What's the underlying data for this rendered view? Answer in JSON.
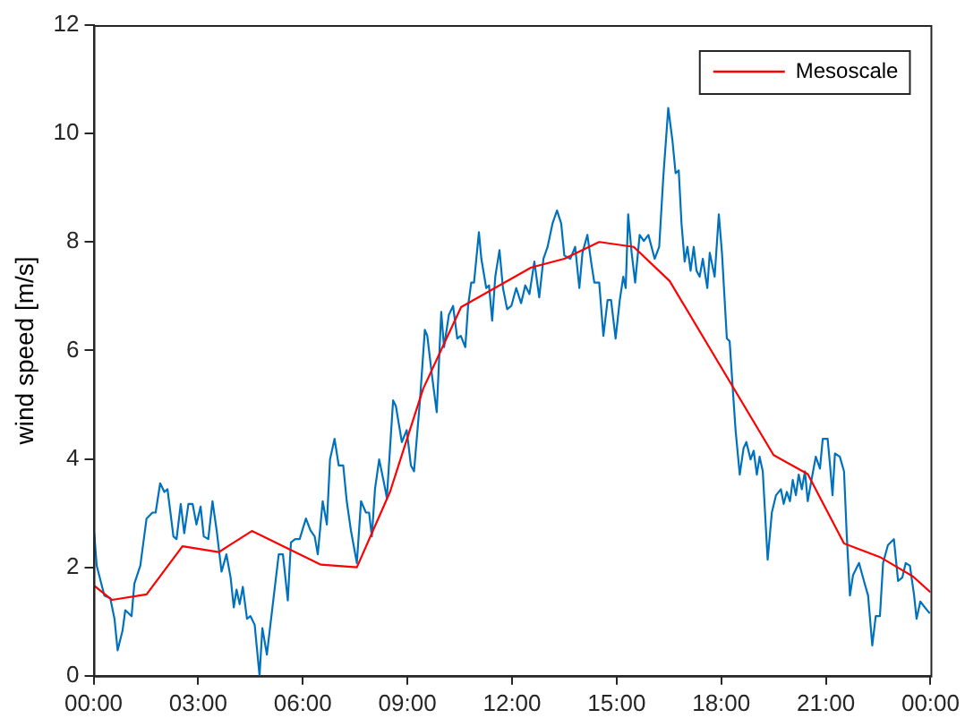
{
  "chart_data": {
    "type": "line",
    "ylabel": "wind speed [m/s]",
    "xlim": [
      0,
      24
    ],
    "ylim": [
      0,
      12
    ],
    "xticks": [
      {
        "value": 0,
        "label": "00:00"
      },
      {
        "value": 3,
        "label": "03:00"
      },
      {
        "value": 6,
        "label": "06:00"
      },
      {
        "value": 9,
        "label": "09:00"
      },
      {
        "value": 12,
        "label": "12:00"
      },
      {
        "value": 15,
        "label": "15:00"
      },
      {
        "value": 18,
        "label": "18:00"
      },
      {
        "value": 21,
        "label": "21:00"
      },
      {
        "value": 24,
        "label": "00:00"
      }
    ],
    "yticks": [
      0,
      2,
      4,
      6,
      8,
      10,
      12
    ],
    "grid": false,
    "legend": "top right",
    "marker": "none",
    "line_style": "solid",
    "series": [
      {
        "name": "Mesoscale",
        "color": "#ff0000",
        "x": [
          0,
          0.53,
          1.52,
          2.55,
          3.59,
          4.54,
          6.52,
          7.55,
          8.5,
          9.45,
          10.54,
          12.55,
          13.5,
          14.5,
          15.49,
          16.52,
          19.5,
          20.48,
          21.52,
          22.55,
          23.5,
          24
        ],
        "values": [
          1.67,
          1.4,
          1.5,
          2.39,
          2.28,
          2.67,
          2.05,
          2.0,
          3.39,
          5.29,
          6.8,
          7.53,
          7.69,
          8.0,
          7.91,
          7.28,
          4.07,
          3.72,
          2.44,
          2.19,
          1.83,
          1.54
        ]
      },
      {
        "color": "#0072bd",
        "x": [
          0.02,
          0.09,
          0.31,
          0.48,
          0.6,
          0.69,
          0.83,
          0.91,
          1.09,
          1.17,
          1.34,
          1.52,
          1.69,
          1.78,
          1.91,
          2.03,
          2.12,
          2.29,
          2.38,
          2.5,
          2.6,
          2.72,
          2.84,
          2.95,
          3.07,
          3.16,
          3.29,
          3.41,
          3.53,
          3.67,
          3.81,
          3.93,
          4.02,
          4.1,
          4.19,
          4.28,
          4.4,
          4.5,
          4.62,
          4.76,
          4.84,
          4.97,
          5.05,
          5.19,
          5.31,
          5.43,
          5.57,
          5.66,
          5.78,
          5.91,
          6.09,
          6.22,
          6.34,
          6.43,
          6.57,
          6.69,
          6.78,
          6.91,
          7.03,
          7.16,
          7.26,
          7.38,
          7.55,
          7.67,
          7.81,
          7.9,
          7.98,
          8.07,
          8.19,
          8.33,
          8.41,
          8.59,
          8.67,
          8.84,
          8.98,
          9.1,
          9.19,
          9.36,
          9.5,
          9.57,
          9.71,
          9.84,
          9.97,
          10.05,
          10.19,
          10.31,
          10.43,
          10.53,
          10.66,
          10.74,
          10.83,
          10.91,
          11.05,
          11.12,
          11.26,
          11.34,
          11.43,
          11.52,
          11.64,
          11.74,
          11.86,
          11.98,
          12.12,
          12.26,
          12.38,
          12.5,
          12.64,
          12.78,
          12.9,
          13.02,
          13.16,
          13.29,
          13.41,
          13.5,
          13.67,
          13.81,
          13.93,
          14.02,
          14.16,
          14.28,
          14.36,
          14.5,
          14.62,
          14.74,
          14.84,
          14.97,
          15.09,
          15.19,
          15.26,
          15.33,
          15.43,
          15.53,
          15.66,
          15.78,
          15.91,
          16.09,
          16.22,
          16.34,
          16.48,
          16.6,
          16.69,
          16.78,
          16.86,
          16.95,
          17.03,
          17.12,
          17.21,
          17.29,
          17.38,
          17.47,
          17.6,
          17.67,
          17.81,
          17.93,
          18.02,
          18.16,
          18.24,
          18.33,
          18.41,
          18.53,
          18.64,
          18.72,
          18.84,
          18.93,
          19.02,
          19.1,
          19.19,
          19.33,
          19.45,
          19.57,
          19.71,
          19.79,
          19.88,
          19.97,
          20.05,
          20.14,
          20.22,
          20.31,
          20.4,
          20.48,
          20.57,
          20.71,
          20.83,
          20.91,
          21.05,
          21.12,
          21.19,
          21.26,
          21.4,
          21.52,
          21.6,
          21.69,
          21.78,
          21.95,
          22.09,
          22.21,
          22.33,
          22.43,
          22.55,
          22.64,
          22.78,
          22.95,
          23.07,
          23.19,
          23.29,
          23.41,
          23.53,
          23.6,
          23.71,
          23.84,
          23.98
        ],
        "values": [
          2.63,
          2.03,
          1.48,
          1.43,
          1.05,
          0.47,
          0.83,
          1.21,
          1.1,
          1.7,
          2.03,
          2.9,
          3.01,
          3.01,
          3.55,
          3.39,
          3.44,
          2.57,
          2.52,
          3.17,
          2.63,
          3.17,
          3.17,
          2.79,
          3.12,
          2.57,
          2.52,
          3.22,
          2.68,
          1.92,
          2.24,
          1.81,
          1.26,
          1.59,
          1.32,
          1.64,
          1.05,
          1.1,
          0.94,
          0,
          0.88,
          0.39,
          0.83,
          1.59,
          2.24,
          2.24,
          1.39,
          2.46,
          2.52,
          2.52,
          2.9,
          2.68,
          2.57,
          2.24,
          3.22,
          2.79,
          3.99,
          4.37,
          3.88,
          3.88,
          3.22,
          2.68,
          2.08,
          3.22,
          3.01,
          3.01,
          2.57,
          3.44,
          3.99,
          3.55,
          3.28,
          5.08,
          4.97,
          4.31,
          4.53,
          3.88,
          3.77,
          5.08,
          6.38,
          6.27,
          5.51,
          4.86,
          6.71,
          6.06,
          6.66,
          6.82,
          6.22,
          6.27,
          6.06,
          6.82,
          7.25,
          7.25,
          8.18,
          7.69,
          7.15,
          7.2,
          6.55,
          7.36,
          7.85,
          7.15,
          6.76,
          6.82,
          7.15,
          6.87,
          7.2,
          7.04,
          7.64,
          6.98,
          7.69,
          7.91,
          8.34,
          8.58,
          8.34,
          7.75,
          7.69,
          7.91,
          7.15,
          7.8,
          8.13,
          7.58,
          7.25,
          7.25,
          6.27,
          6.93,
          6.93,
          6.22,
          6.93,
          7.36,
          7.15,
          8.51,
          7.8,
          7.25,
          8.13,
          8.02,
          8.13,
          7.69,
          7.91,
          9.22,
          10.47,
          9.87,
          9.27,
          9.32,
          8.34,
          7.64,
          7.91,
          7.47,
          7.91,
          7.47,
          7.36,
          7.69,
          7.15,
          7.8,
          7.36,
          8.51,
          7.8,
          6.22,
          6.17,
          5.29,
          4.53,
          3.71,
          4.2,
          4.31,
          3.99,
          4.15,
          3.71,
          4.04,
          3.77,
          2.14,
          3.01,
          3.33,
          3.44,
          3.17,
          3.39,
          3.22,
          3.61,
          3.33,
          3.71,
          3.44,
          3.77,
          3.22,
          3.55,
          4.04,
          3.82,
          4.37,
          4.37,
          3.88,
          3.33,
          4.1,
          4.04,
          3.77,
          2.57,
          1.48,
          1.86,
          2.08,
          1.75,
          1.48,
          0.56,
          1.1,
          1.1,
          2.08,
          2.41,
          2.52,
          1.75,
          1.81,
          2.08,
          2.03,
          1.48,
          1.05,
          1.37,
          1.26,
          1.15
        ]
      }
    ]
  }
}
